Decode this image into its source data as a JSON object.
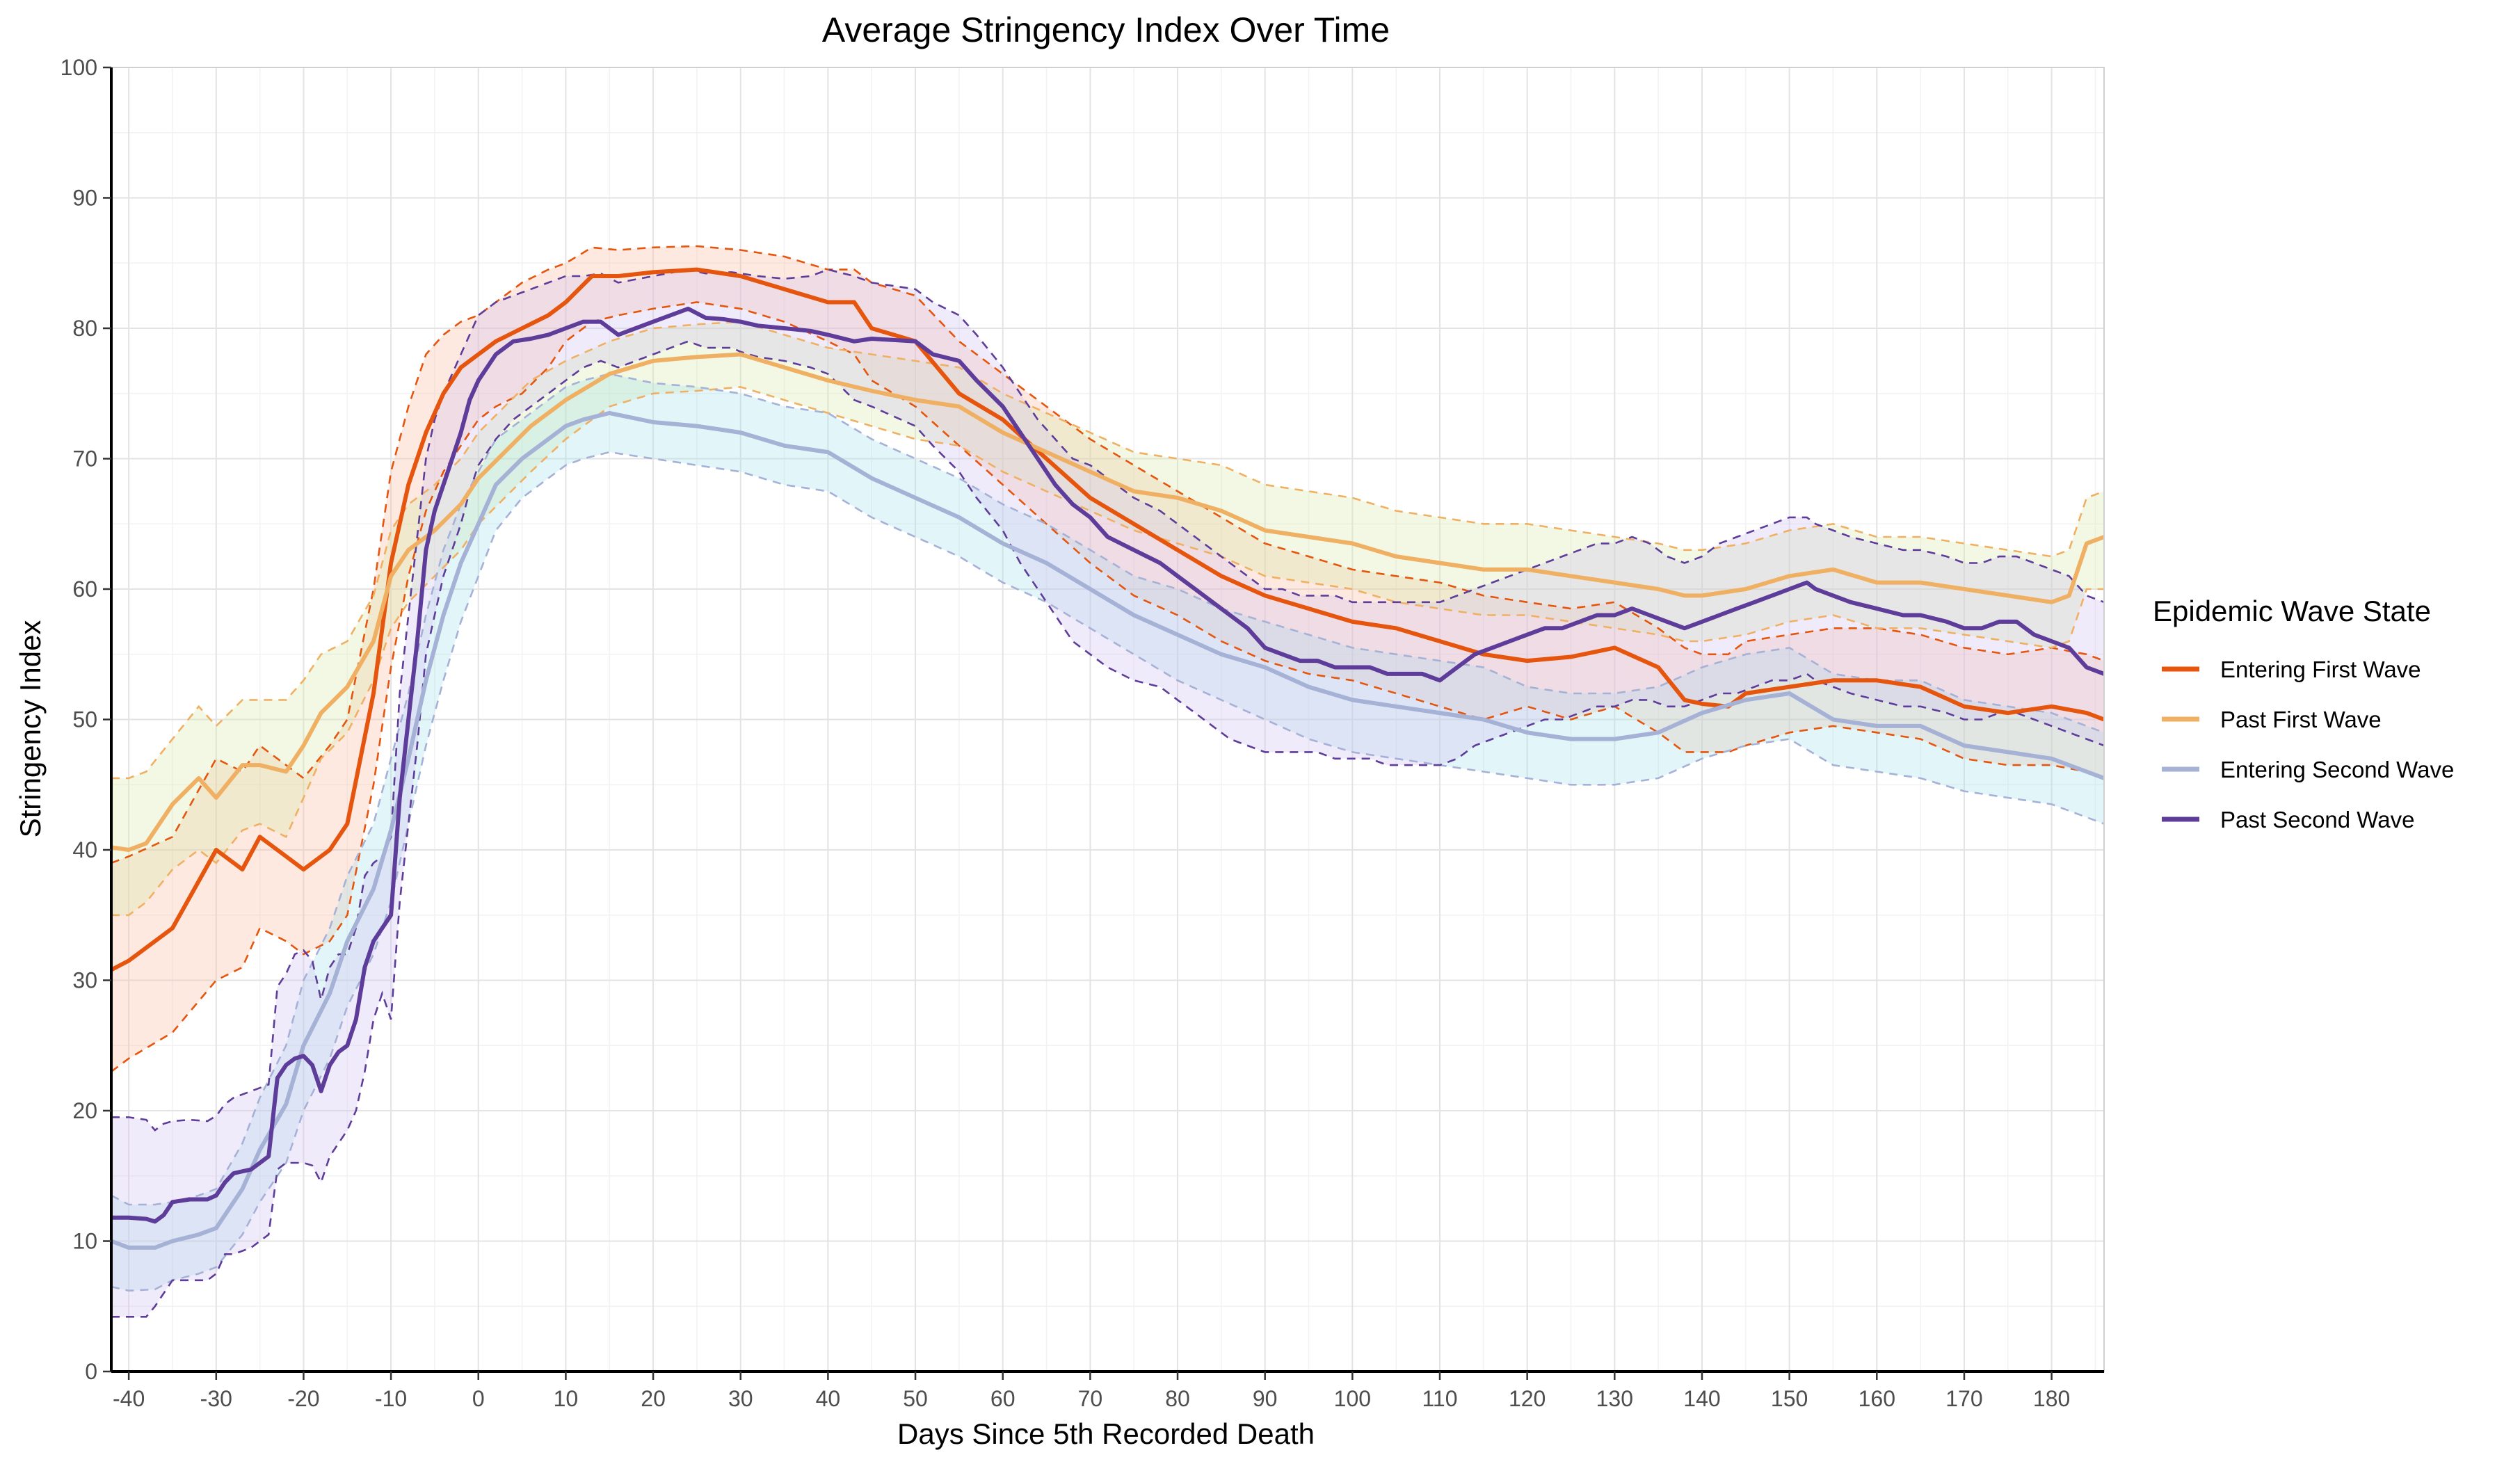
{
  "chart_data": {
    "type": "line",
    "title": "Average Stringency Index Over Time",
    "xlabel": "Days Since 5th Recorded Death",
    "ylabel": "Stringency Index",
    "xlim": [
      -42,
      186
    ],
    "ylim": [
      0,
      100
    ],
    "x_ticks": [
      -40,
      -30,
      -20,
      -10,
      0,
      10,
      20,
      30,
      40,
      50,
      60,
      70,
      80,
      90,
      100,
      110,
      120,
      130,
      140,
      150,
      160,
      170,
      180
    ],
    "y_ticks": [
      0,
      10,
      20,
      30,
      40,
      50,
      60,
      70,
      80,
      90,
      100
    ],
    "grid": true,
    "legend": {
      "title": "Epidemic Wave State",
      "position": "right"
    },
    "series": [
      {
        "name": "Entering First Wave",
        "color": "#e6550d",
        "band_color": "#fcbba1",
        "x": [
          -42,
          -40,
          -35,
          -30,
          -27,
          -25,
          -22,
          -20,
          -17,
          -15,
          -12,
          -10,
          -8,
          -6,
          -4,
          -2,
          0,
          2,
          5,
          8,
          10,
          13,
          16,
          20,
          25,
          30,
          35,
          40,
          43,
          45,
          50,
          55,
          60,
          65,
          70,
          75,
          80,
          85,
          90,
          95,
          100,
          105,
          110,
          115,
          120,
          125,
          130,
          135,
          138,
          140,
          143,
          145,
          150,
          155,
          160,
          165,
          170,
          175,
          180,
          184,
          186
        ],
        "mean": [
          30.8,
          31.5,
          34,
          40,
          38.5,
          41,
          39.5,
          38.5,
          40,
          42,
          52,
          62,
          68,
          72,
          75,
          77,
          78,
          79,
          80,
          81,
          82,
          84,
          84,
          84.3,
          84.5,
          84,
          83,
          82,
          82,
          80,
          79,
          75,
          73,
          70,
          67,
          65,
          63,
          61,
          59.5,
          58.5,
          57.5,
          57,
          56,
          55,
          54.5,
          54.8,
          55.5,
          54,
          51.5,
          51.2,
          51,
          52,
          52.5,
          53,
          53,
          52.5,
          51,
          50.5,
          51,
          50.5,
          50
        ],
        "lower": [
          23,
          24,
          26,
          30,
          31,
          34,
          33,
          32,
          33,
          35,
          45,
          54,
          61,
          66,
          69,
          71,
          73,
          74,
          75,
          77,
          79,
          80.5,
          81,
          81.5,
          82,
          81.5,
          80.5,
          79,
          78,
          76,
          74,
          71,
          68,
          65,
          62,
          59.5,
          58,
          56,
          54.5,
          53.5,
          53,
          52,
          51,
          50,
          51,
          50,
          51,
          49,
          47.5,
          47.5,
          47.5,
          48,
          49,
          49.5,
          49,
          48.5,
          47,
          46.5,
          46.5,
          46,
          45.5
        ],
        "upper": [
          39,
          39.5,
          41,
          47,
          46,
          48,
          46.5,
          45.5,
          48,
          50,
          60,
          69,
          74,
          78,
          79.5,
          80.5,
          81,
          82,
          83.5,
          84.5,
          85,
          86.2,
          86,
          86.2,
          86.3,
          86,
          85.5,
          84.5,
          84.5,
          83.5,
          82.5,
          79,
          76.5,
          74,
          71.5,
          69.5,
          67.5,
          65.5,
          63.5,
          62.5,
          61.5,
          61,
          60.5,
          59.5,
          59,
          58.5,
          59,
          57,
          55.5,
          55,
          55,
          56,
          56.5,
          57,
          57,
          56.5,
          55.5,
          55,
          55.5,
          55,
          54.5
        ]
      },
      {
        "name": "Past First Wave",
        "color": "#f0b064",
        "band_color": "#d7e8a8",
        "x": [
          -42,
          -40,
          -38,
          -35,
          -32,
          -30,
          -27,
          -25,
          -22,
          -20,
          -18,
          -15,
          -12,
          -10,
          -8,
          -5,
          -2,
          0,
          3,
          6,
          10,
          15,
          20,
          25,
          30,
          35,
          40,
          45,
          50,
          55,
          60,
          65,
          70,
          75,
          80,
          85,
          90,
          95,
          100,
          105,
          110,
          115,
          120,
          125,
          130,
          135,
          138,
          140,
          145,
          150,
          155,
          160,
          165,
          170,
          175,
          180,
          182,
          184,
          186
        ],
        "mean": [
          40.2,
          40,
          40.5,
          43.5,
          45.5,
          44,
          46.5,
          46.5,
          46,
          48,
          50.5,
          52.5,
          56,
          61,
          63,
          64.5,
          66.5,
          68.5,
          70.5,
          72.5,
          74.5,
          76.5,
          77.5,
          77.8,
          78,
          77,
          76,
          75.2,
          74.5,
          74,
          72,
          70.5,
          69,
          67.5,
          67,
          66,
          64.5,
          64,
          63.5,
          62.5,
          62,
          61.5,
          61.5,
          61,
          60.5,
          60,
          59.5,
          59.5,
          60,
          61,
          61.5,
          60.5,
          60.5,
          60,
          59.5,
          59,
          59.5,
          63.5,
          64
        ],
        "lower": [
          35,
          35,
          36,
          38.5,
          40,
          39,
          41.5,
          42,
          41,
          44,
          47,
          49,
          53,
          57,
          59,
          61,
          63,
          65,
          67,
          69,
          71.5,
          74,
          75,
          75.2,
          75.5,
          74.5,
          73.5,
          72.5,
          71.5,
          71,
          69,
          67.5,
          66,
          64.5,
          63.5,
          62.5,
          61,
          60.5,
          60,
          59,
          58.5,
          58,
          58,
          57.5,
          57,
          56.5,
          56,
          56,
          56.5,
          57.5,
          58,
          57,
          57,
          56.5,
          56,
          55.5,
          56,
          60,
          60
        ],
        "upper": [
          45.5,
          45.5,
          46,
          48.5,
          51,
          49.5,
          51.5,
          51.5,
          51.5,
          53,
          55,
          56,
          59.5,
          64.5,
          66.5,
          68,
          70,
          72,
          74,
          76,
          77.5,
          79,
          80,
          80.3,
          80.5,
          79.5,
          78.5,
          78,
          77.5,
          77,
          75,
          73.5,
          72,
          70.5,
          70,
          69.5,
          68,
          67.5,
          67,
          66,
          65.5,
          65,
          65,
          64.5,
          64,
          63.5,
          63,
          63,
          63.5,
          64.5,
          65,
          64,
          64,
          63.5,
          63,
          62.5,
          63,
          67,
          67.5
        ]
      },
      {
        "name": "Entering Second Wave",
        "color": "#a6b1d6",
        "band_color": "#a6e1ea",
        "x": [
          -42,
          -40,
          -37,
          -35,
          -32,
          -30,
          -27,
          -25,
          -22,
          -20,
          -17,
          -15,
          -12,
          -10,
          -8,
          -6,
          -4,
          -2,
          0,
          2,
          5,
          8,
          10,
          12,
          15,
          20,
          25,
          30,
          35,
          40,
          45,
          50,
          55,
          60,
          65,
          70,
          75,
          80,
          85,
          90,
          95,
          100,
          105,
          110,
          115,
          120,
          125,
          130,
          135,
          140,
          145,
          150,
          155,
          160,
          165,
          170,
          175,
          180,
          184,
          186
        ],
        "mean": [
          10,
          9.5,
          9.5,
          10,
          10.5,
          11,
          14,
          17,
          20.5,
          25,
          29,
          33,
          37,
          41.5,
          47,
          53,
          58,
          62,
          65,
          68,
          70,
          71.5,
          72.5,
          73,
          73.5,
          72.8,
          72.5,
          72,
          71,
          70.5,
          68.5,
          67,
          65.5,
          63.5,
          62,
          60,
          58,
          56.5,
          55,
          54,
          52.5,
          51.5,
          51,
          50.5,
          50,
          49,
          48.5,
          48.5,
          49,
          50.5,
          51.5,
          52,
          50,
          49.5,
          49.5,
          48,
          47.5,
          47,
          46,
          45.5
        ],
        "lower": [
          6.5,
          6.2,
          6.3,
          7,
          7.5,
          8,
          10.5,
          13,
          16,
          20,
          24,
          28,
          32,
          36,
          42,
          48,
          53,
          57.5,
          61,
          64.5,
          67,
          68.5,
          69.5,
          70,
          70.5,
          70,
          69.5,
          69,
          68,
          67.5,
          65.5,
          64,
          62.5,
          60.5,
          59,
          57,
          55,
          53,
          51.5,
          50,
          48.5,
          47.5,
          47,
          46.5,
          46,
          45.5,
          45,
          45,
          45.5,
          47,
          48,
          48.5,
          46.5,
          46,
          45.5,
          44.5,
          44,
          43.5,
          42.5,
          42
        ],
        "upper": [
          13.5,
          12.8,
          12.8,
          13,
          13.5,
          14,
          17.5,
          21,
          25,
          30,
          34,
          38,
          42,
          47,
          52,
          58,
          63,
          66.5,
          69,
          71.5,
          73,
          74.5,
          75.5,
          76,
          76.5,
          75.8,
          75.5,
          75,
          74,
          73.5,
          71.5,
          70,
          68.5,
          66.5,
          65,
          63,
          61,
          60,
          58.5,
          57.5,
          56.5,
          55.5,
          55,
          54.5,
          54,
          52.5,
          52,
          52,
          52.5,
          54,
          55,
          55.5,
          53.5,
          53,
          53,
          51.5,
          51,
          50.5,
          49.5,
          49
        ]
      },
      {
        "name": "Past Second Wave",
        "color": "#5e3c99",
        "band_color": "#cfc0ef",
        "x": [
          -42,
          -40,
          -38,
          -37,
          -36,
          -35,
          -33,
          -31,
          -30,
          -29,
          -28,
          -26,
          -24,
          -23,
          -22,
          -21,
          -20,
          -19,
          -18,
          -17,
          -16,
          -15,
          -14,
          -13,
          -12,
          -11,
          -10,
          -9,
          -8,
          -7,
          -6,
          -5,
          -4,
          -3,
          -2,
          -1,
          0,
          2,
          4,
          6,
          8,
          10,
          12,
          14,
          16,
          20,
          24,
          26,
          28,
          29,
          30,
          32,
          35,
          38,
          40,
          43,
          45,
          50,
          52,
          55,
          57,
          60,
          62,
          64,
          66,
          68,
          70,
          72,
          75,
          78,
          80,
          82,
          84,
          86,
          88,
          90,
          92,
          94,
          96,
          98,
          100,
          102,
          104,
          106,
          108,
          110,
          112,
          114,
          116,
          118,
          120,
          122,
          124,
          126,
          128,
          130,
          132,
          134,
          136,
          138,
          140,
          142,
          144,
          146,
          148,
          150,
          152,
          153,
          155,
          157,
          160,
          163,
          165,
          168,
          170,
          172,
          174,
          176,
          178,
          180,
          182,
          184,
          186
        ],
        "mean": [
          11.8,
          11.8,
          11.7,
          11.5,
          12,
          13,
          13.2,
          13.2,
          13.5,
          14.5,
          15.2,
          15.5,
          16.5,
          22.5,
          23.5,
          24,
          24.2,
          23.5,
          21.5,
          23.5,
          24.5,
          25,
          27,
          31,
          33,
          34,
          35,
          44,
          50,
          56,
          63,
          66,
          68,
          70,
          72,
          74.5,
          76,
          78,
          79,
          79.2,
          79.5,
          80,
          80.5,
          80.5,
          79.5,
          80.5,
          81.5,
          80.8,
          80.7,
          80.6,
          80.5,
          80.2,
          80,
          79.8,
          79.5,
          79,
          79.2,
          79,
          78,
          77.5,
          76,
          74,
          72,
          70,
          68,
          66.5,
          65.5,
          64,
          63,
          62,
          61,
          60,
          59,
          58,
          57,
          55.5,
          55,
          54.5,
          54.5,
          54,
          54,
          54,
          53.5,
          53.5,
          53.5,
          53,
          54,
          55,
          55.5,
          56,
          56.5,
          57,
          57,
          57.5,
          58,
          58,
          58.5,
          58,
          57.5,
          57,
          57.5,
          58,
          58.5,
          59,
          59.5,
          60,
          60.5,
          60,
          59.5,
          59,
          58.5,
          58,
          58,
          57.5,
          57,
          57,
          57.5,
          57.5,
          56.5,
          56,
          55.5,
          54,
          53.5
        ],
        "lower": [
          4.2,
          4.2,
          4.2,
          5,
          6,
          7,
          7,
          7,
          7.5,
          9,
          9,
          9.5,
          10.5,
          15.5,
          16,
          16,
          16,
          15.8,
          14.5,
          16.5,
          17.5,
          18.5,
          20,
          23,
          27,
          29,
          27,
          36,
          42,
          48,
          55,
          58,
          61,
          63,
          65,
          67.5,
          69.5,
          71.5,
          73,
          74,
          75,
          76,
          77,
          77.5,
          77,
          78,
          79,
          78.5,
          78.5,
          78.5,
          78.2,
          77.8,
          77.5,
          77,
          76.5,
          74.5,
          74,
          72.5,
          71,
          69,
          67,
          64.5,
          62,
          60,
          58,
          56,
          55,
          54,
          53,
          52.5,
          51.5,
          50.5,
          49.5,
          48.5,
          48,
          47.5,
          47.5,
          47.5,
          47.5,
          47,
          47,
          47,
          46.5,
          46.5,
          46.5,
          46.5,
          47,
          48,
          48.5,
          49,
          49.5,
          50,
          50,
          50.5,
          51,
          51,
          51.5,
          51.5,
          51,
          51,
          51.5,
          52,
          52,
          52.5,
          53,
          53,
          53.5,
          53,
          52.5,
          52,
          51.5,
          51,
          51,
          50.5,
          50,
          50,
          50.5,
          50.5,
          50,
          49.5,
          49,
          48.5,
          48
        ],
        "upper": [
          19.5,
          19.5,
          19.3,
          18.5,
          19,
          19.2,
          19.3,
          19.2,
          19.6,
          20.5,
          21,
          21.5,
          22,
          29.5,
          30.5,
          32,
          32.3,
          31.5,
          28.5,
          31,
          32,
          32,
          34,
          38,
          39,
          39.5,
          41,
          52,
          58,
          64,
          70,
          73,
          75,
          76.5,
          78,
          79.5,
          81,
          82,
          82.5,
          83,
          83.5,
          84,
          84,
          84.2,
          83.5,
          84,
          84.5,
          84.2,
          84.3,
          84.3,
          84.2,
          84,
          83.8,
          84,
          84.5,
          84,
          83.5,
          83,
          82,
          81,
          79.5,
          77,
          75,
          73,
          71.5,
          70,
          69.5,
          68.5,
          67,
          66,
          65,
          64,
          63,
          62,
          61,
          60,
          60,
          59.5,
          59.5,
          59.5,
          59,
          59,
          59,
          59,
          59,
          59,
          59.5,
          60,
          60.5,
          61,
          61.5,
          62,
          62.5,
          63,
          63.5,
          63.5,
          64,
          63.5,
          62.5,
          62,
          62.5,
          63.5,
          64,
          64.5,
          65,
          65.5,
          65.5,
          65,
          64.5,
          64,
          63.5,
          63,
          63,
          62.5,
          62,
          62,
          62.5,
          62.5,
          62,
          61.5,
          61,
          59.5,
          59
        ]
      }
    ]
  }
}
